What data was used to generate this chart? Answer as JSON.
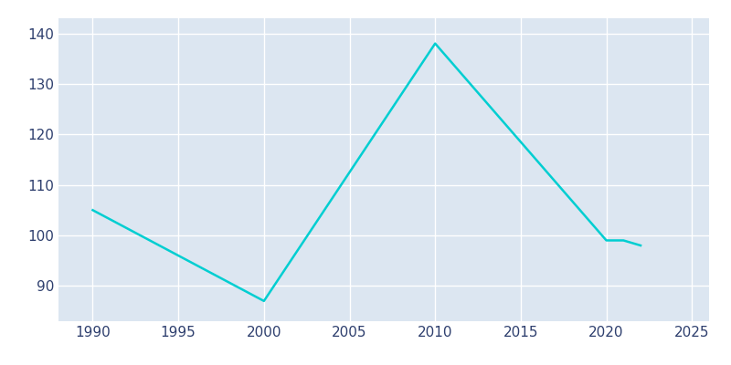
{
  "years": [
    1990,
    2000,
    2010,
    2020,
    2021,
    2022
  ],
  "values": [
    105,
    87,
    138,
    99,
    99,
    98
  ],
  "line_color": "#00CED1",
  "fig_bg_color": "#ffffff",
  "plot_bg_color": "#dce6f1",
  "grid_color": "#ffffff",
  "tick_color": "#2e3f6e",
  "xlim": [
    1988,
    2026
  ],
  "ylim": [
    83,
    143
  ],
  "xticks": [
    1990,
    1995,
    2000,
    2005,
    2010,
    2015,
    2020,
    2025
  ],
  "yticks": [
    90,
    100,
    110,
    120,
    130,
    140
  ],
  "line_width": 1.8,
  "tick_labelsize": 11
}
